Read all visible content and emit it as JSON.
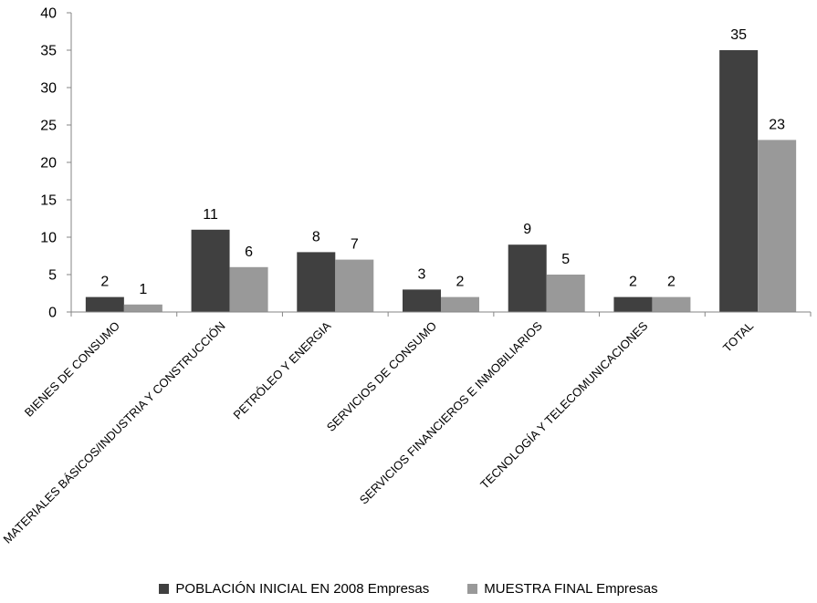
{
  "chart_data": {
    "type": "bar",
    "title": "",
    "xlabel": "",
    "ylabel": "",
    "ylim": [
      0,
      40
    ],
    "yticks": [
      0,
      5,
      10,
      15,
      20,
      25,
      30,
      35,
      40
    ],
    "grid": false,
    "legend_position": "bottom",
    "categories": [
      "BIENES DE CONSUMO",
      "MATERIALES BÁSICOS/INDUSTRIA Y CONSTRUCCIÓN",
      "PETRÓLEO Y ENERGIA",
      "SERVICIOS DE CONSUMO",
      "SERVICIOS FINANCIEROS  E INMOBILIARIOS",
      "TECNOLOGÍA Y TELECOMUNICACIONES",
      "TOTAL"
    ],
    "series": [
      {
        "name": "POBLACIÓN INICIAL EN 2008 Empresas",
        "color": "#404040",
        "values": [
          2,
          11,
          8,
          3,
          9,
          2,
          35
        ]
      },
      {
        "name": "MUESTRA FINAL Empresas",
        "color": "#999999",
        "values": [
          1,
          6,
          7,
          2,
          5,
          2,
          23
        ]
      }
    ]
  }
}
